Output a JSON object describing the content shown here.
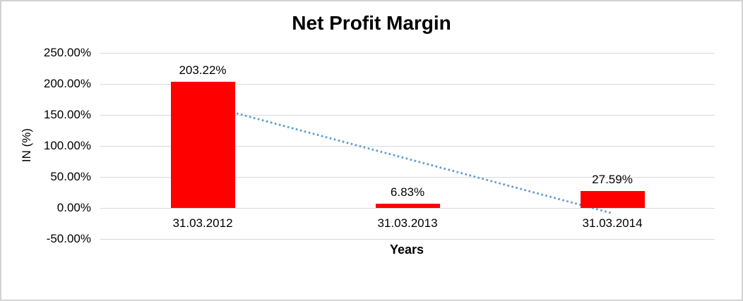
{
  "chart_data": {
    "type": "bar",
    "title": "Net Profit Margin",
    "xlabel": "Years",
    "ylabel": "IN (%)",
    "categories": [
      "31.03.2012",
      "31.03.2013",
      "31.03.2014"
    ],
    "values": [
      203.22,
      6.83,
      27.59
    ],
    "value_labels": [
      "203.22%",
      "6.83%",
      "27.59%"
    ],
    "ylim": [
      -50,
      250
    ],
    "ytick_step": 50,
    "yticks": [
      250,
      200,
      150,
      100,
      50,
      0,
      -50
    ],
    "ytick_labels": [
      "250.00%",
      "200.00%",
      "150.00%",
      "100.00%",
      "50.00%",
      "0.00%",
      "-50.00%"
    ],
    "grid": true,
    "legend": "none",
    "trendline": {
      "style": "dotted",
      "shape": "linear",
      "start_value": 167.0,
      "end_value": -8.6
    },
    "colors": {
      "bar": "#ff0000",
      "trendline": "#5b9bd5",
      "gridline": "#d9d9d9",
      "text": "#000000",
      "background": "#ffffff",
      "border": "#d2d2d2"
    }
  }
}
